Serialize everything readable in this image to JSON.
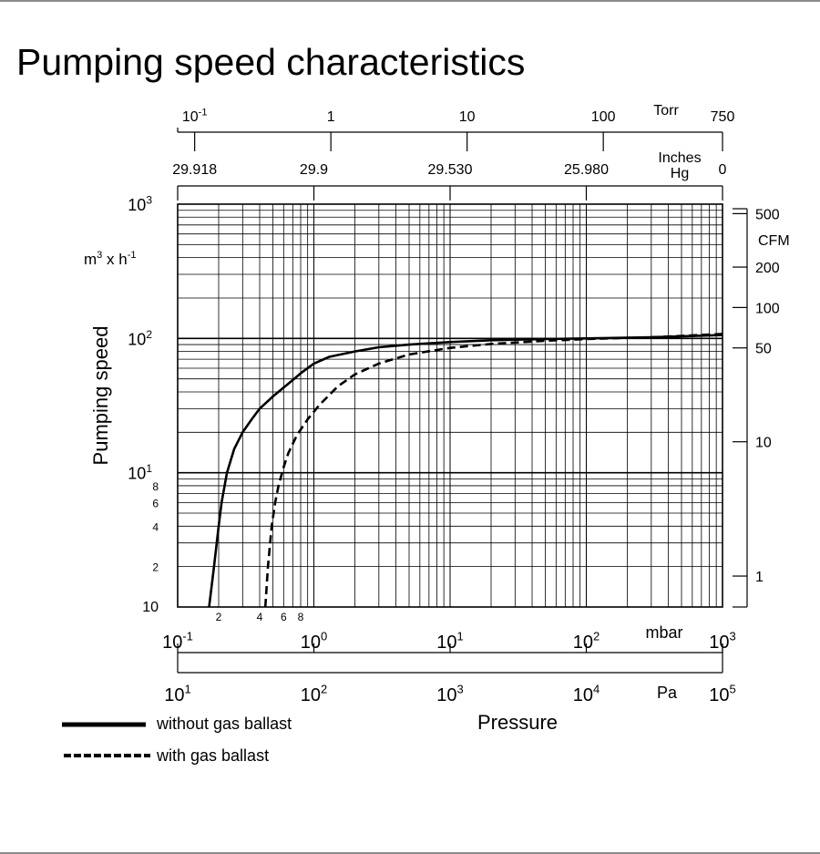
{
  "chart_data": {
    "type": "line",
    "title": "Pumping speed characteristics",
    "xlabel": "Pressure",
    "ylabel": "Pumping speed",
    "xscale": "log",
    "yscale": "log",
    "xlim": [
      0.1,
      1000
    ],
    "ylim": [
      1,
      1000
    ],
    "units": {
      "x": "mbar",
      "y": "m³ x h⁻¹",
      "x2": "Pa",
      "x3": "Torr",
      "x4": "Inches Hg",
      "y2": "CFM"
    },
    "y_unit_label": {
      "base": "m",
      "exp": "3",
      "mid": " x h",
      "exp2": "-1"
    },
    "x_axis_mbar": {
      "unit": "mbar",
      "ticks": [
        {
          "value": 0.1,
          "base": "10",
          "exp": "-1"
        },
        {
          "value": 1,
          "base": "10",
          "exp": "0"
        },
        {
          "value": 10,
          "base": "10",
          "exp": "1"
        },
        {
          "value": 100,
          "base": "10",
          "exp": "2"
        },
        {
          "value": 1000,
          "base": "10",
          "exp": "3"
        }
      ],
      "minor_labels": [
        {
          "value": 0.2,
          "label": "2"
        },
        {
          "value": 0.4,
          "label": "4"
        },
        {
          "value": 0.6,
          "label": "6"
        },
        {
          "value": 0.8,
          "label": "8"
        }
      ]
    },
    "x_axis_pa": {
      "unit": "Pa",
      "ticks": [
        {
          "value": 0.1,
          "base": "10",
          "exp": "1"
        },
        {
          "value": 1,
          "base": "10",
          "exp": "2"
        },
        {
          "value": 10,
          "base": "10",
          "exp": "3"
        },
        {
          "value": 100,
          "base": "10",
          "exp": "4"
        },
        {
          "value": 1000,
          "base": "10",
          "exp": "5"
        }
      ]
    },
    "x_axis_torr": {
      "unit": "Torr",
      "ticks": [
        {
          "value": 0.1333,
          "base": "10",
          "exp": "-1"
        },
        {
          "value": 1.333,
          "label": "1"
        },
        {
          "value": 13.33,
          "label": "10"
        },
        {
          "value": 133.3,
          "label": "100"
        },
        {
          "value": 1000,
          "label": "750"
        }
      ]
    },
    "x_axis_inhg": {
      "unit_line1": "Inches",
      "unit_line2": "Hg",
      "ticks": [
        {
          "value": 0.1333,
          "label": "29.918"
        },
        {
          "value": 1,
          "label": "29.9"
        },
        {
          "value": 10,
          "label": "29.530"
        },
        {
          "value": 100,
          "label": "25.980"
        },
        {
          "value": 1000,
          "label": "0"
        }
      ],
      "tick_marks_at": [
        0.1,
        1,
        10,
        100,
        1000
      ]
    },
    "y_axis_left": {
      "ticks": [
        {
          "value": 10,
          "base": "10",
          "exp": "1"
        },
        {
          "value": 100,
          "base": "10",
          "exp": "2"
        },
        {
          "value": 1000,
          "base": "10",
          "exp": "3"
        }
      ],
      "minor_labels": [
        {
          "value": 1,
          "label": "10"
        },
        {
          "value": 2,
          "label": "2"
        },
        {
          "value": 4,
          "label": "4"
        },
        {
          "value": 6,
          "label": "6"
        },
        {
          "value": 8,
          "label": "8"
        }
      ]
    },
    "y_axis_cfm": {
      "unit": "CFM",
      "ticks": [
        {
          "value": 1.7,
          "label": "1"
        },
        {
          "value": 17,
          "label": "10"
        },
        {
          "value": 85,
          "label": "50"
        },
        {
          "value": 170,
          "label": "100"
        },
        {
          "value": 340,
          "label": "200"
        },
        {
          "value": 850,
          "label": "500"
        }
      ]
    },
    "series": [
      {
        "name": "without gas ballast",
        "style": "solid",
        "x": [
          0.17,
          0.185,
          0.2,
          0.21,
          0.23,
          0.26,
          0.3,
          0.35,
          0.4,
          0.5,
          0.6,
          0.7,
          0.8,
          1.0,
          1.3,
          2,
          3,
          5,
          10,
          20,
          50,
          100,
          300,
          1000
        ],
        "y": [
          1,
          2,
          4,
          6,
          10,
          15,
          20,
          25,
          30,
          37,
          43,
          49,
          55,
          65,
          73,
          80,
          86,
          90,
          94,
          97,
          99,
          100,
          102,
          106
        ]
      },
      {
        "name": "with gas ballast",
        "style": "dashed",
        "x": [
          0.44,
          0.46,
          0.49,
          0.52,
          0.55,
          0.6,
          0.65,
          0.75,
          0.9,
          1.1,
          1.5,
          2,
          3,
          5,
          10,
          20,
          50,
          100,
          300,
          1000
        ],
        "y": [
          1,
          2,
          4,
          6,
          8,
          11,
          14,
          19,
          25,
          32,
          44,
          54,
          65,
          76,
          85,
          91,
          96,
          99,
          102,
          108
        ]
      }
    ],
    "legend": {
      "placement": "bottom-left",
      "entries": [
        "without gas ballast",
        "with gas ballast"
      ]
    },
    "grid": true
  }
}
